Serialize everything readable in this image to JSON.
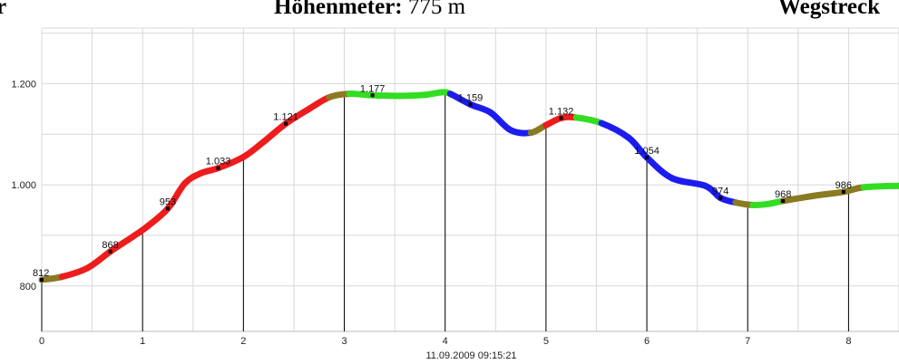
{
  "header": {
    "left_text": "r",
    "altimeter_label": "Höhenmeter:",
    "altimeter_value": "775 m",
    "distance_label": "Wegstreck"
  },
  "footer": {
    "timestamp": "11.09.2009 09:15:21"
  },
  "colors": {
    "grid": "#d8d8d8",
    "background": "#ffffff",
    "track_red": "#ee1c1c",
    "track_green": "#33dd22",
    "track_blue": "#1c1cee",
    "track_olive": "#8a7a22"
  },
  "chart_data": {
    "type": "line",
    "xlim": [
      0,
      8.5
    ],
    "ylim": [
      710,
      1310
    ],
    "y_ticks": [
      800,
      1000,
      1200
    ],
    "y_tick_labels": [
      "800",
      "1.000",
      "1.200"
    ],
    "x_ticks": [
      0,
      1,
      2,
      3,
      4,
      5,
      6,
      7,
      8
    ],
    "x_tick_labels": [
      "0",
      "1",
      "2",
      "3",
      "4",
      "5",
      "6",
      "7",
      "8"
    ],
    "grid": true,
    "vertical_markers": [
      0,
      1,
      2,
      3,
      4,
      5,
      6,
      7,
      8
    ],
    "profile": [
      {
        "x": 0.0,
        "y": 812,
        "c": "olive"
      },
      {
        "x": 0.2,
        "y": 818,
        "c": "red"
      },
      {
        "x": 0.45,
        "y": 835,
        "c": "red"
      },
      {
        "x": 0.68,
        "y": 868,
        "c": "red"
      },
      {
        "x": 0.9,
        "y": 897,
        "c": "red"
      },
      {
        "x": 1.05,
        "y": 918,
        "c": "red"
      },
      {
        "x": 1.25,
        "y": 953,
        "c": "red"
      },
      {
        "x": 1.42,
        "y": 1003,
        "c": "red"
      },
      {
        "x": 1.58,
        "y": 1023,
        "c": "red"
      },
      {
        "x": 1.75,
        "y": 1033,
        "c": "red"
      },
      {
        "x": 2.0,
        "y": 1055,
        "c": "red"
      },
      {
        "x": 2.2,
        "y": 1085,
        "c": "red"
      },
      {
        "x": 2.42,
        "y": 1121,
        "c": "red"
      },
      {
        "x": 2.65,
        "y": 1150,
        "c": "red"
      },
      {
        "x": 2.85,
        "y": 1173,
        "c": "olive"
      },
      {
        "x": 3.05,
        "y": 1180,
        "c": "green"
      },
      {
        "x": 3.28,
        "y": 1177,
        "c": "green"
      },
      {
        "x": 3.55,
        "y": 1176,
        "c": "green"
      },
      {
        "x": 3.8,
        "y": 1178,
        "c": "green"
      },
      {
        "x": 3.97,
        "y": 1183,
        "c": "green"
      },
      {
        "x": 4.05,
        "y": 1180,
        "c": "blue"
      },
      {
        "x": 4.25,
        "y": 1159,
        "c": "blue"
      },
      {
        "x": 4.45,
        "y": 1143,
        "c": "blue"
      },
      {
        "x": 4.65,
        "y": 1108,
        "c": "blue"
      },
      {
        "x": 4.85,
        "y": 1103,
        "c": "olive"
      },
      {
        "x": 5.0,
        "y": 1118,
        "c": "red"
      },
      {
        "x": 5.15,
        "y": 1132,
        "c": "red"
      },
      {
        "x": 5.3,
        "y": 1133,
        "c": "green"
      },
      {
        "x": 5.55,
        "y": 1122,
        "c": "blue"
      },
      {
        "x": 5.82,
        "y": 1093,
        "c": "blue"
      },
      {
        "x": 6.0,
        "y": 1054,
        "c": "blue"
      },
      {
        "x": 6.25,
        "y": 1013,
        "c": "blue"
      },
      {
        "x": 6.58,
        "y": 998,
        "c": "blue"
      },
      {
        "x": 6.73,
        "y": 974,
        "c": "blue"
      },
      {
        "x": 6.88,
        "y": 965,
        "c": "olive"
      },
      {
        "x": 7.05,
        "y": 960,
        "c": "green"
      },
      {
        "x": 7.2,
        "y": 962,
        "c": "green"
      },
      {
        "x": 7.35,
        "y": 968,
        "c": "olive"
      },
      {
        "x": 7.65,
        "y": 978,
        "c": "olive"
      },
      {
        "x": 7.95,
        "y": 986,
        "c": "olive"
      },
      {
        "x": 8.15,
        "y": 995,
        "c": "green"
      },
      {
        "x": 8.5,
        "y": 998,
        "c": "green"
      }
    ],
    "labeled_points": [
      {
        "x": 0.0,
        "y": 812,
        "label": "812"
      },
      {
        "x": 0.68,
        "y": 868,
        "label": "868"
      },
      {
        "x": 1.25,
        "y": 953,
        "label": "953"
      },
      {
        "x": 1.75,
        "y": 1033,
        "label": "1.033"
      },
      {
        "x": 2.42,
        "y": 1121,
        "label": "1.121"
      },
      {
        "x": 3.28,
        "y": 1177,
        "label": "1.177"
      },
      {
        "x": 4.25,
        "y": 1159,
        "label": "1.159"
      },
      {
        "x": 5.15,
        "y": 1132,
        "label": "1.132"
      },
      {
        "x": 6.0,
        "y": 1054,
        "label": "1.054"
      },
      {
        "x": 6.73,
        "y": 974,
        "label": "974"
      },
      {
        "x": 7.35,
        "y": 968,
        "label": "968"
      },
      {
        "x": 7.95,
        "y": 986,
        "label": "986"
      }
    ]
  }
}
